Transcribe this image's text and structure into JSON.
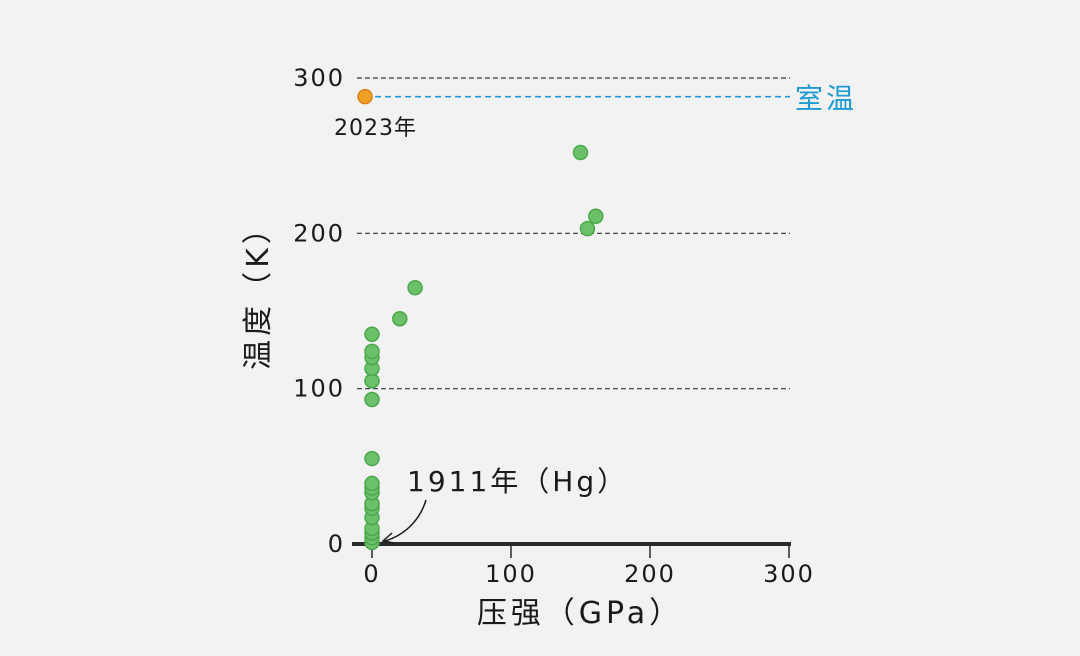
{
  "chart_data": {
    "type": "scatter",
    "xlabel": "压强（GPa）",
    "ylabel": "温度（K）",
    "xlim": [
      0,
      300
    ],
    "ylim": [
      0,
      300
    ],
    "x_ticks": [
      "0",
      "100",
      "200",
      "300"
    ],
    "y_ticks": [
      "0",
      "100",
      "200",
      "300"
    ],
    "grid": "horizontal dashed at 100, 200, 300",
    "series": [
      {
        "color": "#6cc06a",
        "points": [
          {
            "x": 0,
            "y": 1
          },
          {
            "x": 0,
            "y": 4
          },
          {
            "x": 0,
            "y": 7
          },
          {
            "x": 0,
            "y": 10
          },
          {
            "x": 0,
            "y": 17
          },
          {
            "x": 0,
            "y": 23
          },
          {
            "x": 0,
            "y": 26
          },
          {
            "x": 0,
            "y": 33
          },
          {
            "x": 0,
            "y": 36
          },
          {
            "x": 0,
            "y": 39
          },
          {
            "x": 0,
            "y": 55
          },
          {
            "x": 0,
            "y": 93
          },
          {
            "x": 0,
            "y": 105
          },
          {
            "x": 0,
            "y": 113
          },
          {
            "x": 0,
            "y": 120
          },
          {
            "x": 0,
            "y": 124
          },
          {
            "x": 0,
            "y": 135
          },
          {
            "x": 20,
            "y": 145
          },
          {
            "x": 31,
            "y": 165
          },
          {
            "x": 150,
            "y": 252
          },
          {
            "x": 155,
            "y": 203
          },
          {
            "x": 161,
            "y": 211
          }
        ]
      },
      {
        "color": "#f0a023",
        "points": [
          {
            "x": -5,
            "y": 288
          }
        ]
      }
    ],
    "reference_line": {
      "y": 288,
      "label": "室温",
      "color": "#1e9bd7"
    },
    "annotations": [
      {
        "text": "2023年",
        "x": -5,
        "y": 288
      },
      {
        "text": "1911年（Hg）",
        "x": 0,
        "y": 4
      }
    ]
  }
}
